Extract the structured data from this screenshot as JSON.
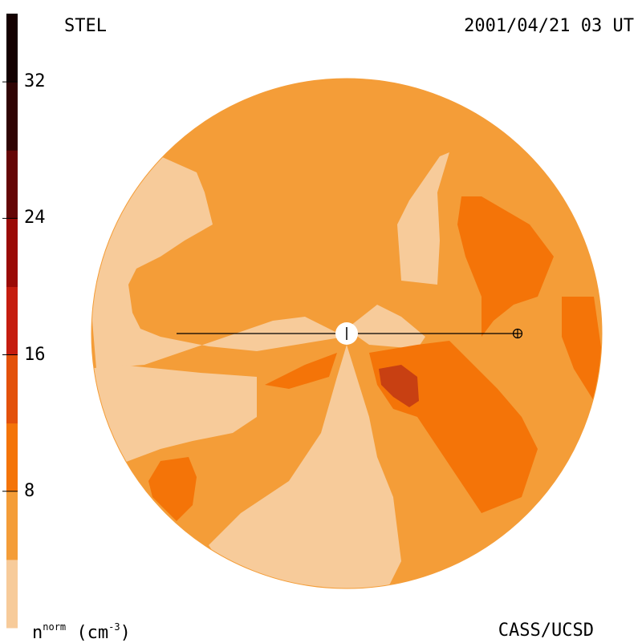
{
  "header": {
    "instrument": "STEL",
    "timestamp": "2001/04/21 03 UT"
  },
  "footer": {
    "quantity_base": "n",
    "quantity_sup": "norm",
    "unit_prefix": "(cm",
    "unit_sup": "-3",
    "unit_suffix": ")",
    "credit": "CASS/UCSD"
  },
  "colorbar": {
    "min": 0,
    "max": 36,
    "step": 4,
    "tick_labels": [
      "32",
      "24",
      "16",
      "8"
    ],
    "tick_values": [
      32,
      24,
      16,
      8
    ],
    "colors": [
      "#f7cb9a",
      "#f49d38",
      "#f47408",
      "#e3510b",
      "#c51d0f",
      "#9a0a06",
      "#650606",
      "#300404",
      "#140101"
    ]
  },
  "map": {
    "background_level_color": "#f49d38",
    "sun_symbol": "sun-disk",
    "earth_symbol": "earth-symbol"
  }
}
